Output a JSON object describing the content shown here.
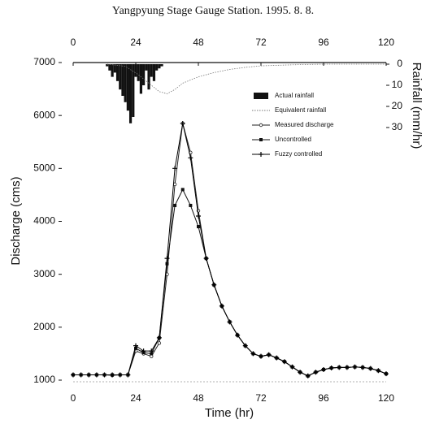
{
  "chart_data": {
    "type": "line",
    "title": "Yangpyung  Stage Gauge Station. 1995. 8. 8.",
    "xlabel": "Time (hr)",
    "ylabel": "Discharge (cms)",
    "y2label": "Rainfall (mm/hr)",
    "xlim": [
      0,
      120
    ],
    "xticks": [
      0,
      24,
      48,
      72,
      96,
      120
    ],
    "ylim": [
      1000,
      7000
    ],
    "yticks": [
      1000,
      2000,
      3000,
      4000,
      5000,
      6000,
      7000
    ],
    "y2lim": [
      0,
      30
    ],
    "y2ticks": [
      0,
      10,
      20,
      30
    ],
    "y2_inverted": true,
    "legend": "upper right",
    "series": [
      {
        "name": "Actual rainfall",
        "type": "bar",
        "axis": "y2",
        "color": "#111111",
        "x": [
          13,
          14,
          15,
          16,
          17,
          18,
          19,
          20,
          21,
          22,
          23,
          24,
          25,
          26,
          27,
          28,
          29,
          30,
          31,
          32,
          33,
          34
        ],
        "values": [
          1,
          3,
          6,
          4,
          8,
          12,
          15,
          18,
          22,
          28,
          25,
          6,
          8,
          14,
          10,
          3,
          12,
          6,
          8,
          3,
          2,
          1
        ]
      },
      {
        "name": "Equivalent rainfall",
        "type": "line",
        "axis": "y2",
        "color": "#777777",
        "dash": true,
        "marker": "none",
        "x": [
          13,
          20,
          25,
          30,
          33,
          36,
          39,
          42,
          48,
          54,
          60,
          66,
          72,
          84,
          96,
          120
        ],
        "values": [
          0,
          1,
          5,
          10,
          13,
          14,
          12,
          9,
          6,
          4,
          2.5,
          1.5,
          0.8,
          0.3,
          0,
          0
        ]
      },
      {
        "name": "Measured discharge",
        "type": "line",
        "color": "#222222",
        "marker": "circle",
        "x": [
          0,
          3,
          6,
          9,
          12,
          15,
          18,
          21,
          24,
          27,
          30,
          33,
          36,
          39,
          42,
          45,
          48,
          51,
          54,
          57,
          60,
          63,
          66,
          69,
          72,
          75,
          78,
          81,
          84,
          87,
          90,
          93,
          96,
          99,
          102,
          105,
          108,
          111,
          114,
          117,
          120
        ],
        "values": [
          1100,
          1100,
          1100,
          1100,
          1100,
          1090,
          1100,
          1100,
          1550,
          1500,
          1450,
          1700,
          3000,
          4700,
          5850,
          5300,
          4200,
          3300,
          2800,
          2400,
          2100,
          1850,
          1650,
          1500,
          1450,
          1480,
          1420,
          1350,
          1250,
          1150,
          1080,
          1150,
          1200,
          1230,
          1240,
          1240,
          1250,
          1240,
          1220,
          1180,
          1120
        ]
      },
      {
        "name": "Uncontrolled",
        "type": "line",
        "color": "#111111",
        "marker": "square",
        "x": [
          0,
          3,
          6,
          9,
          12,
          15,
          18,
          21,
          24,
          27,
          30,
          33,
          36,
          39,
          42,
          45,
          48,
          51,
          54,
          57,
          60,
          63,
          66,
          69,
          72,
          75,
          78,
          81,
          84,
          87,
          90,
          93,
          96,
          99,
          102,
          105,
          108,
          111,
          114,
          117,
          120
        ],
        "values": [
          1100,
          1100,
          1100,
          1100,
          1100,
          1100,
          1100,
          1100,
          1600,
          1520,
          1500,
          1800,
          3200,
          4300,
          4600,
          4300,
          3900,
          3300,
          2800,
          2400,
          2100,
          1850,
          1650,
          1500,
          1450,
          1480,
          1420,
          1350,
          1250,
          1150,
          1080,
          1150,
          1200,
          1230,
          1240,
          1240,
          1250,
          1240,
          1220,
          1180,
          1120
        ]
      },
      {
        "name": "Fuzzy controlled",
        "type": "line",
        "color": "#000000",
        "marker": "plus",
        "x": [
          0,
          3,
          6,
          9,
          12,
          15,
          18,
          21,
          24,
          27,
          30,
          33,
          36,
          39,
          42,
          45,
          48,
          51,
          54,
          57,
          60,
          63,
          66,
          69,
          72,
          75,
          78,
          81,
          84,
          87,
          90,
          93,
          96,
          99,
          102,
          105,
          108,
          111,
          114,
          117,
          120
        ],
        "values": [
          1100,
          1100,
          1100,
          1100,
          1100,
          1100,
          1100,
          1100,
          1650,
          1550,
          1550,
          1800,
          3300,
          5000,
          5850,
          5200,
          4100,
          3300,
          2800,
          2400,
          2100,
          1850,
          1650,
          1500,
          1450,
          1480,
          1420,
          1350,
          1250,
          1150,
          1080,
          1150,
          1200,
          1230,
          1240,
          1240,
          1250,
          1240,
          1220,
          1180,
          1120
        ]
      }
    ]
  }
}
